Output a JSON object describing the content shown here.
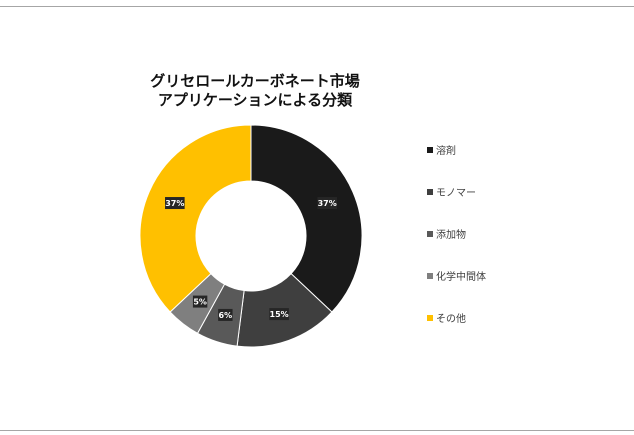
{
  "chart_data": {
    "type": "pie",
    "title_lines": [
      "グリセロールカーボネート市場",
      "アプリケーションによる分類"
    ],
    "categories": [
      "溶剤",
      "モノマー",
      "添加物",
      "化学中間体",
      "その他"
    ],
    "values": [
      37,
      15,
      6,
      5,
      37
    ],
    "value_labels": [
      "37%",
      "15%",
      "6%",
      "5%",
      "37%"
    ],
    "colors": [
      "#1a1a1a",
      "#3f3f3f",
      "#595959",
      "#7f7f7f",
      "#ffc000"
    ],
    "style": "donut",
    "legend_position": "right"
  }
}
